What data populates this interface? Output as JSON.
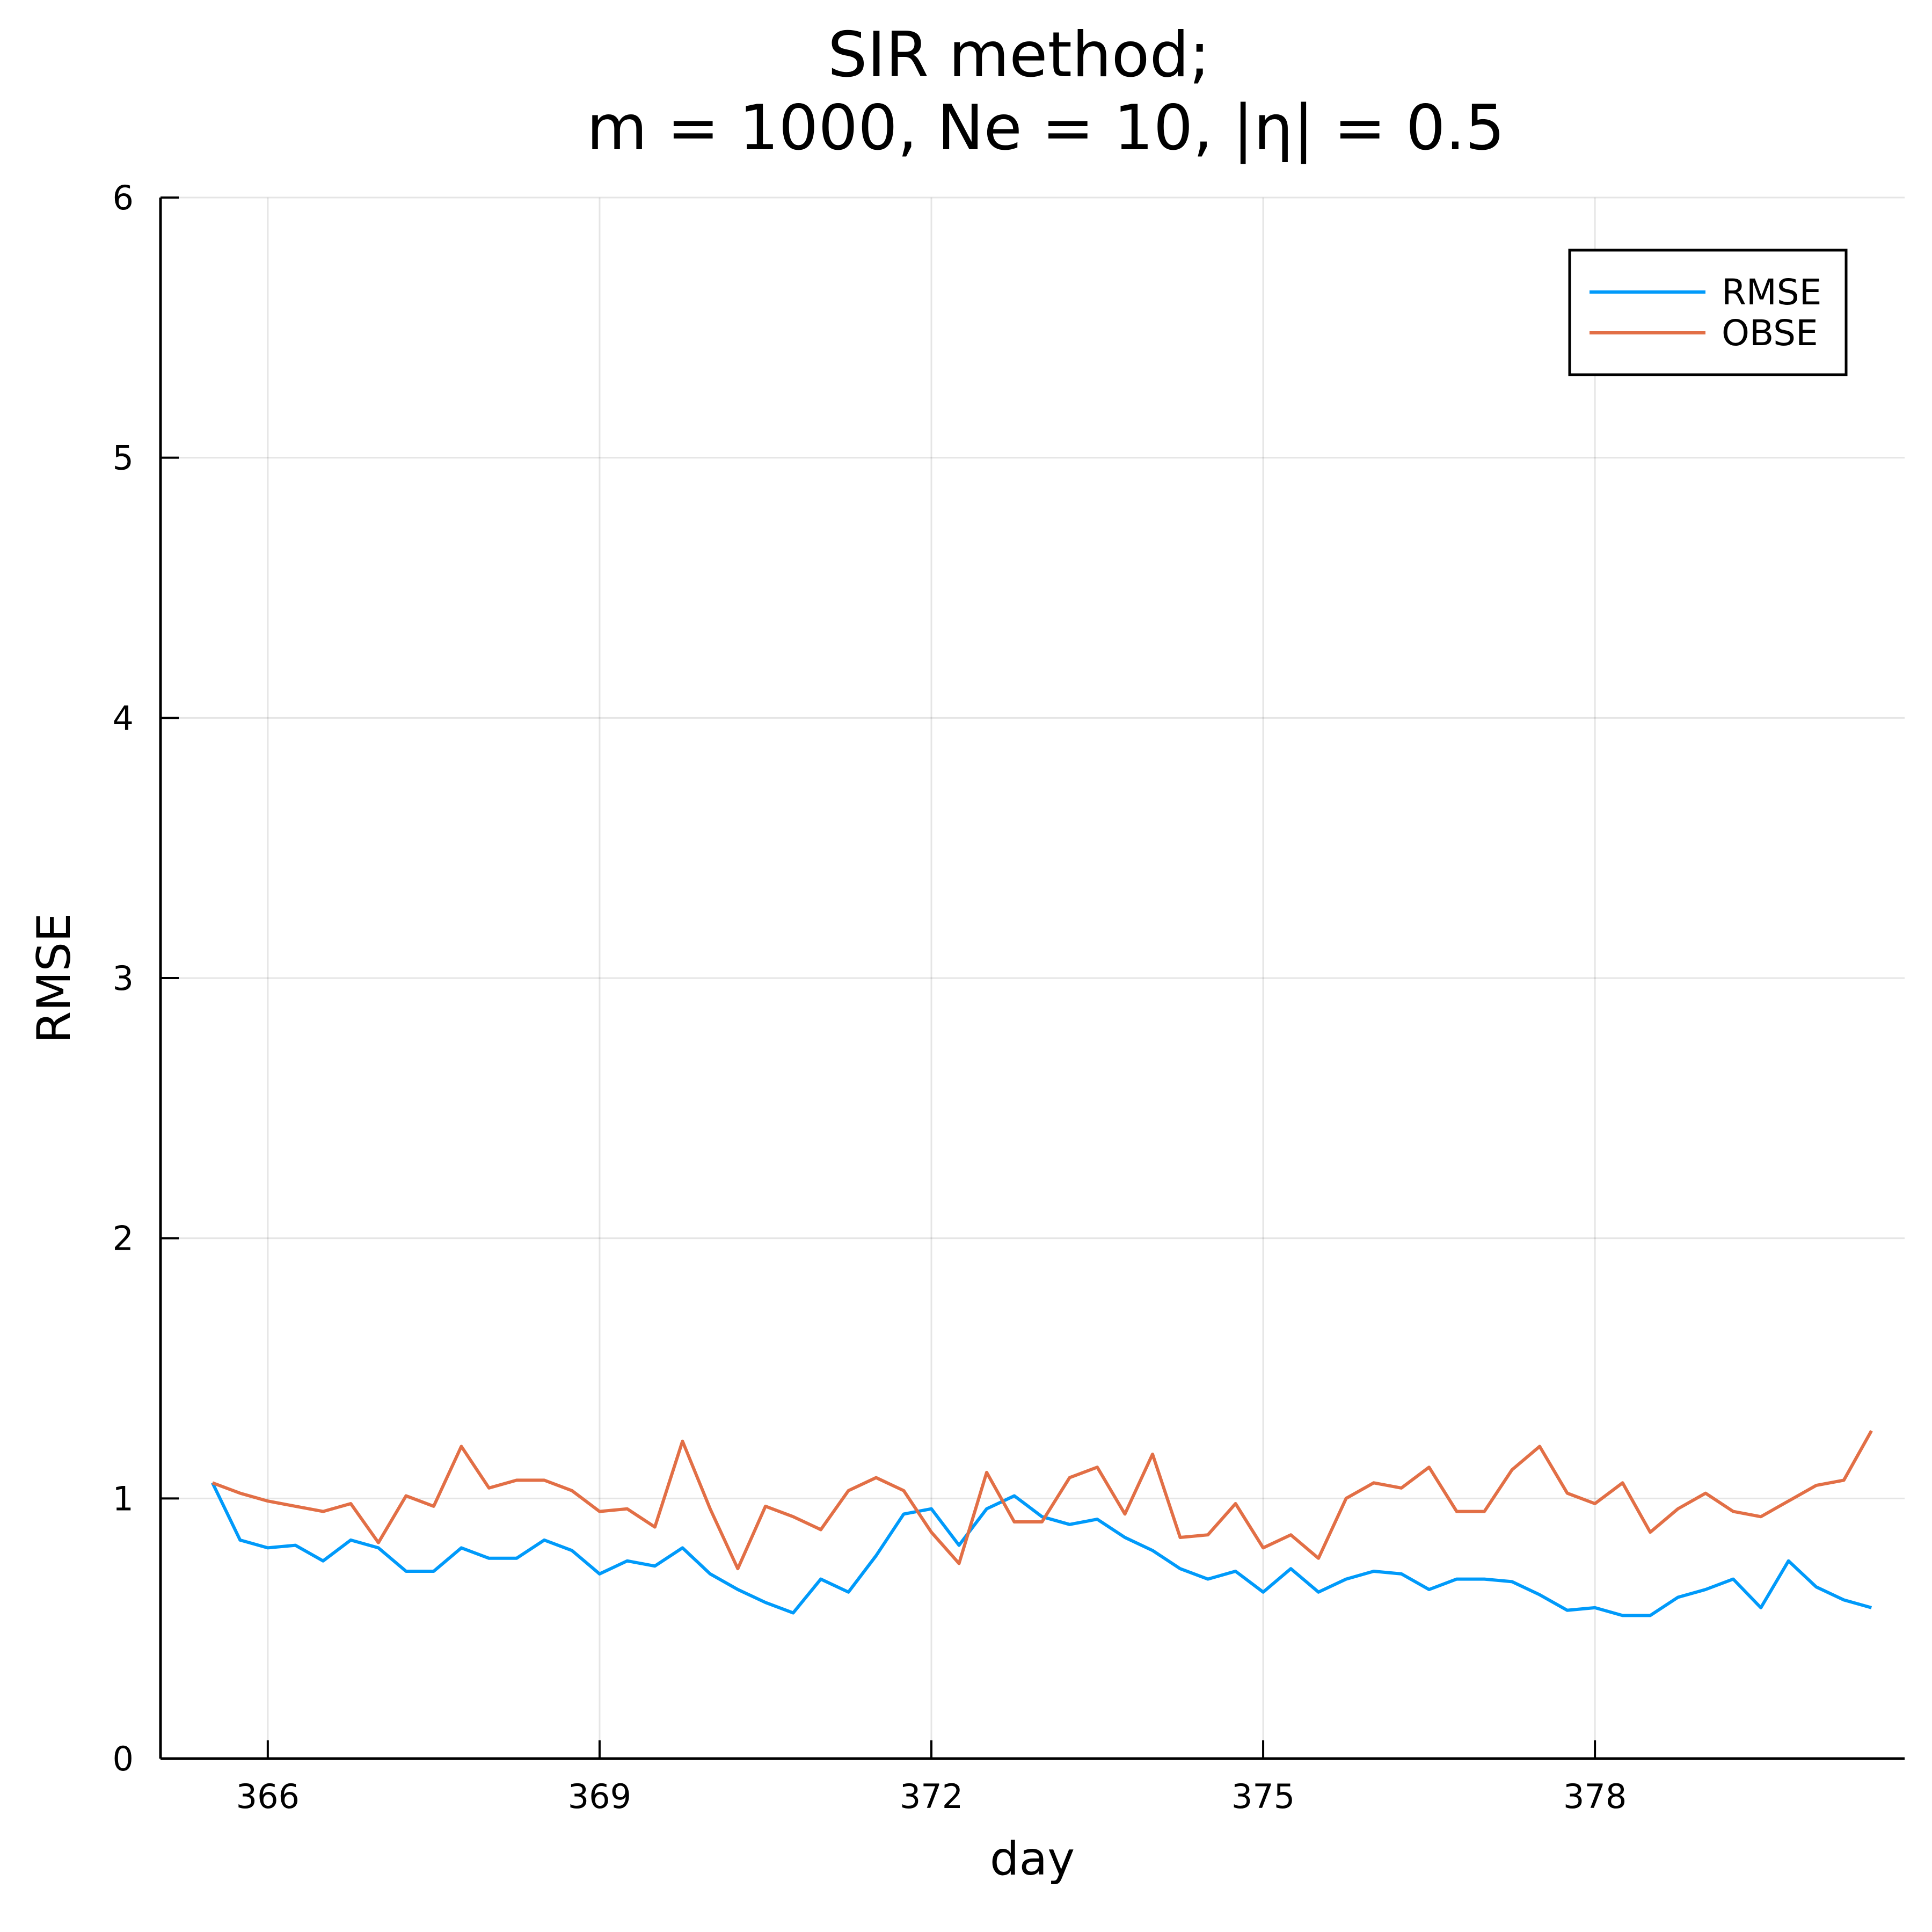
{
  "chart_data": {
    "type": "line",
    "title_lines": [
      "SIR method;",
      "m = 1000, Ne = 10, |η| = 0.5"
    ],
    "xlabel": "day",
    "ylabel": "RMSE",
    "xlim": [
      365.03,
      380.8
    ],
    "ylim": [
      0,
      6
    ],
    "xticks": [
      366,
      369,
      372,
      375,
      378
    ],
    "yticks": [
      0,
      1,
      2,
      3,
      4,
      5,
      6
    ],
    "grid": true,
    "legend_position": "top-right",
    "x_start": 365.5,
    "x_step": 0.25,
    "series": [
      {
        "name": "RMSE",
        "color": "#009AFA",
        "values": [
          1.06,
          0.84,
          0.81,
          0.82,
          0.76,
          0.84,
          0.81,
          0.72,
          0.72,
          0.81,
          0.77,
          0.77,
          0.84,
          0.8,
          0.71,
          0.76,
          0.74,
          0.81,
          0.71,
          0.65,
          0.6,
          0.56,
          0.69,
          0.64,
          0.78,
          0.94,
          0.96,
          0.82,
          0.96,
          1.01,
          0.93,
          0.9,
          0.92,
          0.85,
          0.8,
          0.73,
          0.69,
          0.72,
          0.64,
          0.73,
          0.64,
          0.69,
          0.72,
          0.71,
          0.65,
          0.69,
          0.69,
          0.68,
          0.63,
          0.57,
          0.58,
          0.55,
          0.55,
          0.62,
          0.65,
          0.69,
          0.58,
          0.76,
          0.66,
          0.61,
          0.58
        ]
      },
      {
        "name": "OBSE",
        "color": "#E26F46",
        "values": [
          1.06,
          1.02,
          0.99,
          0.97,
          0.95,
          0.98,
          0.83,
          1.01,
          0.97,
          1.2,
          1.04,
          1.07,
          1.07,
          1.03,
          0.95,
          0.96,
          0.89,
          1.22,
          0.96,
          0.73,
          0.97,
          0.93,
          0.88,
          1.03,
          1.08,
          1.03,
          0.87,
          0.75,
          1.1,
          0.91,
          0.91,
          1.08,
          1.12,
          0.94,
          1.17,
          0.85,
          0.86,
          0.98,
          0.81,
          0.86,
          0.77,
          1.0,
          1.06,
          1.04,
          1.12,
          0.95,
          0.95,
          1.11,
          1.2,
          1.02,
          0.98,
          1.06,
          0.87,
          0.96,
          1.02,
          0.95,
          0.93,
          0.99,
          1.05,
          1.07,
          1.26
        ]
      }
    ]
  }
}
